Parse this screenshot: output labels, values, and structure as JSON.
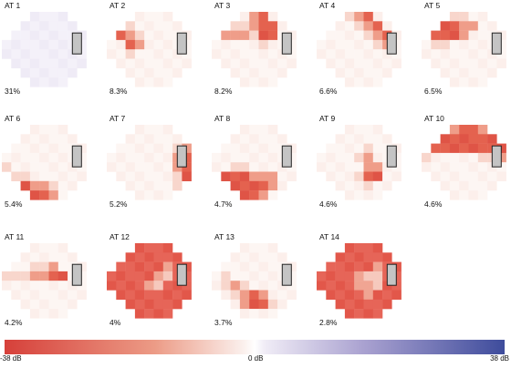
{
  "colorbar": {
    "min_label": "-38 dB",
    "mid_label": "0 dB",
    "max_label": "38 dB",
    "low_color": "#d6403a",
    "mid_color": "#ffffff",
    "high_color": "#3e4c9c"
  },
  "patterns": [
    {
      "label": "AT 1",
      "percent": "31%",
      "deep": [],
      "mid": [],
      "light": [],
      "tint": "blue"
    },
    {
      "label": "AT 2",
      "percent": "8.3%",
      "deep": [
        [
          1,
          1
        ],
        [
          2,
          1
        ],
        [
          3,
          2
        ]
      ],
      "mid": [
        [
          2,
          2
        ],
        [
          3,
          3
        ]
      ],
      "light": [
        [
          2,
          3
        ],
        [
          4,
          2
        ],
        [
          1,
          2
        ]
      ]
    },
    {
      "label": "AT 3",
      "percent": "8.2%",
      "deep": [
        [
          0,
          5
        ],
        [
          1,
          5
        ],
        [
          1,
          6
        ],
        [
          2,
          5
        ],
        [
          2,
          6
        ]
      ],
      "mid": [
        [
          2,
          0
        ],
        [
          2,
          1
        ],
        [
          2,
          2
        ],
        [
          2,
          3
        ],
        [
          0,
          4
        ],
        [
          1,
          4
        ]
      ],
      "light": [
        [
          1,
          2
        ],
        [
          1,
          3
        ],
        [
          2,
          4
        ],
        [
          3,
          5
        ]
      ]
    },
    {
      "label": "AT 4",
      "percent": "6.6%",
      "deep": [
        [
          0,
          5
        ],
        [
          1,
          6
        ],
        [
          2,
          7
        ]
      ],
      "mid": [
        [
          0,
          4
        ],
        [
          1,
          5
        ],
        [
          2,
          6
        ],
        [
          3,
          7
        ]
      ],
      "light": [
        [
          0,
          3
        ],
        [
          1,
          4
        ],
        [
          2,
          5
        ],
        [
          3,
          6
        ]
      ]
    },
    {
      "label": "AT 5",
      "percent": "6.5%",
      "deep": [
        [
          2,
          0
        ],
        [
          2,
          1
        ],
        [
          2,
          2
        ],
        [
          2,
          3
        ],
        [
          1,
          2
        ],
        [
          1,
          3
        ]
      ],
      "mid": [
        [
          1,
          4
        ],
        [
          2,
          4
        ],
        [
          1,
          5
        ]
      ],
      "light": [
        [
          0,
          3
        ],
        [
          0,
          4
        ],
        [
          3,
          1
        ],
        [
          3,
          2
        ]
      ]
    },
    {
      "label": "AT 6",
      "percent": "5.4%",
      "deep": [
        [
          7,
          3
        ],
        [
          7,
          4
        ],
        [
          6,
          2
        ]
      ],
      "mid": [
        [
          6,
          3
        ],
        [
          6,
          4
        ],
        [
          7,
          5
        ],
        [
          6,
          1
        ]
      ],
      "light": [
        [
          5,
          1
        ],
        [
          5,
          2
        ],
        [
          6,
          5
        ],
        [
          4,
          0
        ]
      ]
    },
    {
      "label": "AT 7",
      "percent": "5.2%",
      "deep": [
        [
          3,
          8
        ],
        [
          4,
          8
        ],
        [
          5,
          8
        ]
      ],
      "mid": [
        [
          2,
          8
        ],
        [
          3,
          7
        ],
        [
          4,
          7
        ]
      ],
      "light": [
        [
          5,
          7
        ],
        [
          2,
          7
        ],
        [
          6,
          7
        ]
      ]
    },
    {
      "label": "AT 8",
      "percent": "4.7%",
      "deep": [
        [
          5,
          0
        ],
        [
          5,
          1
        ],
        [
          5,
          2
        ],
        [
          5,
          3
        ],
        [
          6,
          2
        ],
        [
          6,
          3
        ],
        [
          6,
          4
        ],
        [
          7,
          3
        ],
        [
          7,
          4
        ],
        [
          6,
          5
        ]
      ],
      "mid": [
        [
          5,
          4
        ],
        [
          5,
          5
        ],
        [
          6,
          1
        ],
        [
          7,
          5
        ],
        [
          6,
          6
        ],
        [
          5,
          6
        ]
      ],
      "light": [
        [
          4,
          2
        ],
        [
          4,
          3
        ],
        [
          7,
          2
        ]
      ]
    },
    {
      "label": "AT 9",
      "percent": "4.6%",
      "deep": [
        [
          5,
          6
        ],
        [
          5,
          5
        ]
      ],
      "mid": [
        [
          4,
          5
        ],
        [
          4,
          6
        ],
        [
          3,
          5
        ]
      ],
      "light": [
        [
          3,
          4
        ],
        [
          5,
          4
        ],
        [
          6,
          5
        ],
        [
          2,
          5
        ]
      ]
    },
    {
      "label": "AT 10",
      "percent": "4.6%",
      "deep": [
        [
          2,
          0
        ],
        [
          2,
          1
        ],
        [
          2,
          2
        ],
        [
          2,
          3
        ],
        [
          2,
          4
        ],
        [
          2,
          5
        ],
        [
          2,
          6
        ],
        [
          1,
          2
        ],
        [
          1,
          3
        ],
        [
          1,
          4
        ],
        [
          1,
          5
        ],
        [
          1,
          6
        ],
        [
          1,
          7
        ],
        [
          0,
          4
        ],
        [
          0,
          5
        ],
        [
          2,
          7
        ],
        [
          2,
          8
        ]
      ],
      "mid": [
        [
          0,
          3
        ],
        [
          0,
          6
        ],
        [
          1,
          1
        ],
        [
          1,
          8
        ],
        [
          3,
          8
        ]
      ],
      "light": [
        [
          3,
          7
        ],
        [
          3,
          6
        ],
        [
          3,
          0
        ]
      ]
    },
    {
      "label": "AT 11",
      "percent": "4.2%",
      "deep": [
        [
          3,
          5
        ],
        [
          3,
          6
        ]
      ],
      "mid": [
        [
          3,
          3
        ],
        [
          3,
          4
        ],
        [
          2,
          5
        ]
      ],
      "light": [
        [
          3,
          0
        ],
        [
          3,
          1
        ],
        [
          3,
          2
        ],
        [
          2,
          3
        ],
        [
          2,
          4
        ]
      ]
    },
    {
      "label": "AT 12",
      "percent": "4%",
      "deep": "all",
      "mid": [
        [
          3,
          5
        ],
        [
          4,
          4
        ],
        [
          2,
          6
        ]
      ],
      "light": [
        [
          4,
          5
        ],
        [
          3,
          6
        ]
      ]
    },
    {
      "label": "AT 13",
      "percent": "3.7%",
      "deep": [
        [
          5,
          4
        ],
        [
          6,
          4
        ],
        [
          6,
          5
        ]
      ],
      "mid": [
        [
          5,
          3
        ],
        [
          5,
          5
        ],
        [
          4,
          2
        ],
        [
          6,
          3
        ]
      ],
      "light": [
        [
          4,
          3
        ],
        [
          5,
          2
        ],
        [
          4,
          1
        ],
        [
          6,
          6
        ],
        [
          3,
          1
        ]
      ]
    },
    {
      "label": "AT 14",
      "percent": "2.8%",
      "deep": "all",
      "mid": [
        [
          3,
          4
        ],
        [
          4,
          4
        ],
        [
          4,
          5
        ],
        [
          2,
          6
        ],
        [
          5,
          5
        ]
      ],
      "light": [
        [
          3,
          5
        ],
        [
          4,
          6
        ],
        [
          3,
          6
        ]
      ]
    }
  ]
}
